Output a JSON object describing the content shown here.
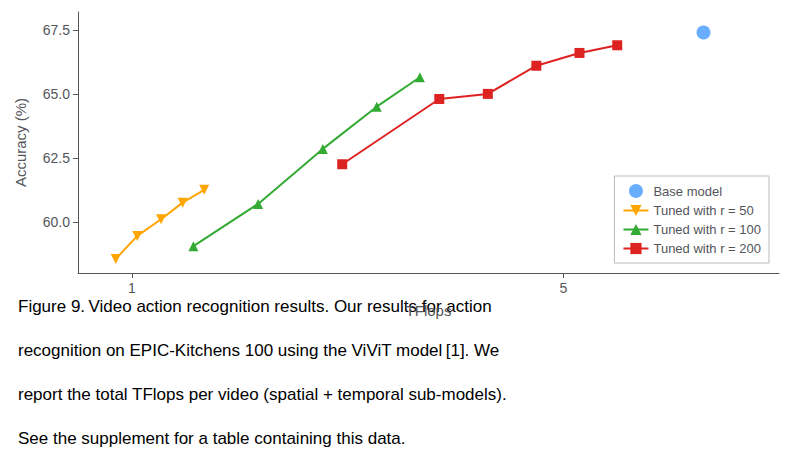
{
  "chart_data": {
    "type": "line",
    "xlabel": "TFlops",
    "ylabel": "Accuracy (%)",
    "xlim": [
      0.5,
      7.0
    ],
    "ylim": [
      58.0,
      68.2
    ],
    "xticks": [
      1,
      5
    ],
    "yticks": [
      {
        "value": 60.0,
        "label": "60.0"
      },
      62.5,
      {
        "value": 65.0,
        "label": "65.0"
      },
      67.5
    ],
    "grid": false,
    "legend": "lower right",
    "series": [
      {
        "name": "Base model",
        "type": "scatter",
        "color": "#4499ff",
        "marker": "circle",
        "x": [
          6.3
        ],
        "values": [
          67.4
        ]
      },
      {
        "name": "Tuned with r = 50",
        "type": "line",
        "color": "#FFA500",
        "marker": "triangle_down",
        "x": [
          0.85,
          1.05,
          1.27,
          1.47,
          1.67
        ],
        "values": [
          58.55,
          59.45,
          60.1,
          60.75,
          61.25
        ]
      },
      {
        "name": "Tuned with r = 100",
        "type": "line",
        "color": "#33aa33",
        "marker": "triangle_up",
        "x": [
          1.57,
          2.17,
          2.77,
          3.27,
          3.67
        ],
        "values": [
          59.05,
          60.7,
          62.85,
          64.5,
          65.65
        ]
      },
      {
        "name": "Tuned with r = 200",
        "type": "line",
        "color": "#dd2222",
        "marker": "square",
        "x": [
          2.95,
          3.85,
          4.3,
          4.75,
          5.15,
          5.5
        ],
        "values": [
          62.25,
          64.8,
          65.0,
          66.1,
          66.6,
          66.9
        ]
      }
    ],
    "caption": [
      "Figure 9. Video action recognition results. Our results for action",
      "recognition on EPIC-Kitchens 100 using the ViViT model [1]. We",
      "report the total TFlops per video (spatial + temporal sub-models).",
      "See the supplement for a table containing this data."
    ]
  }
}
